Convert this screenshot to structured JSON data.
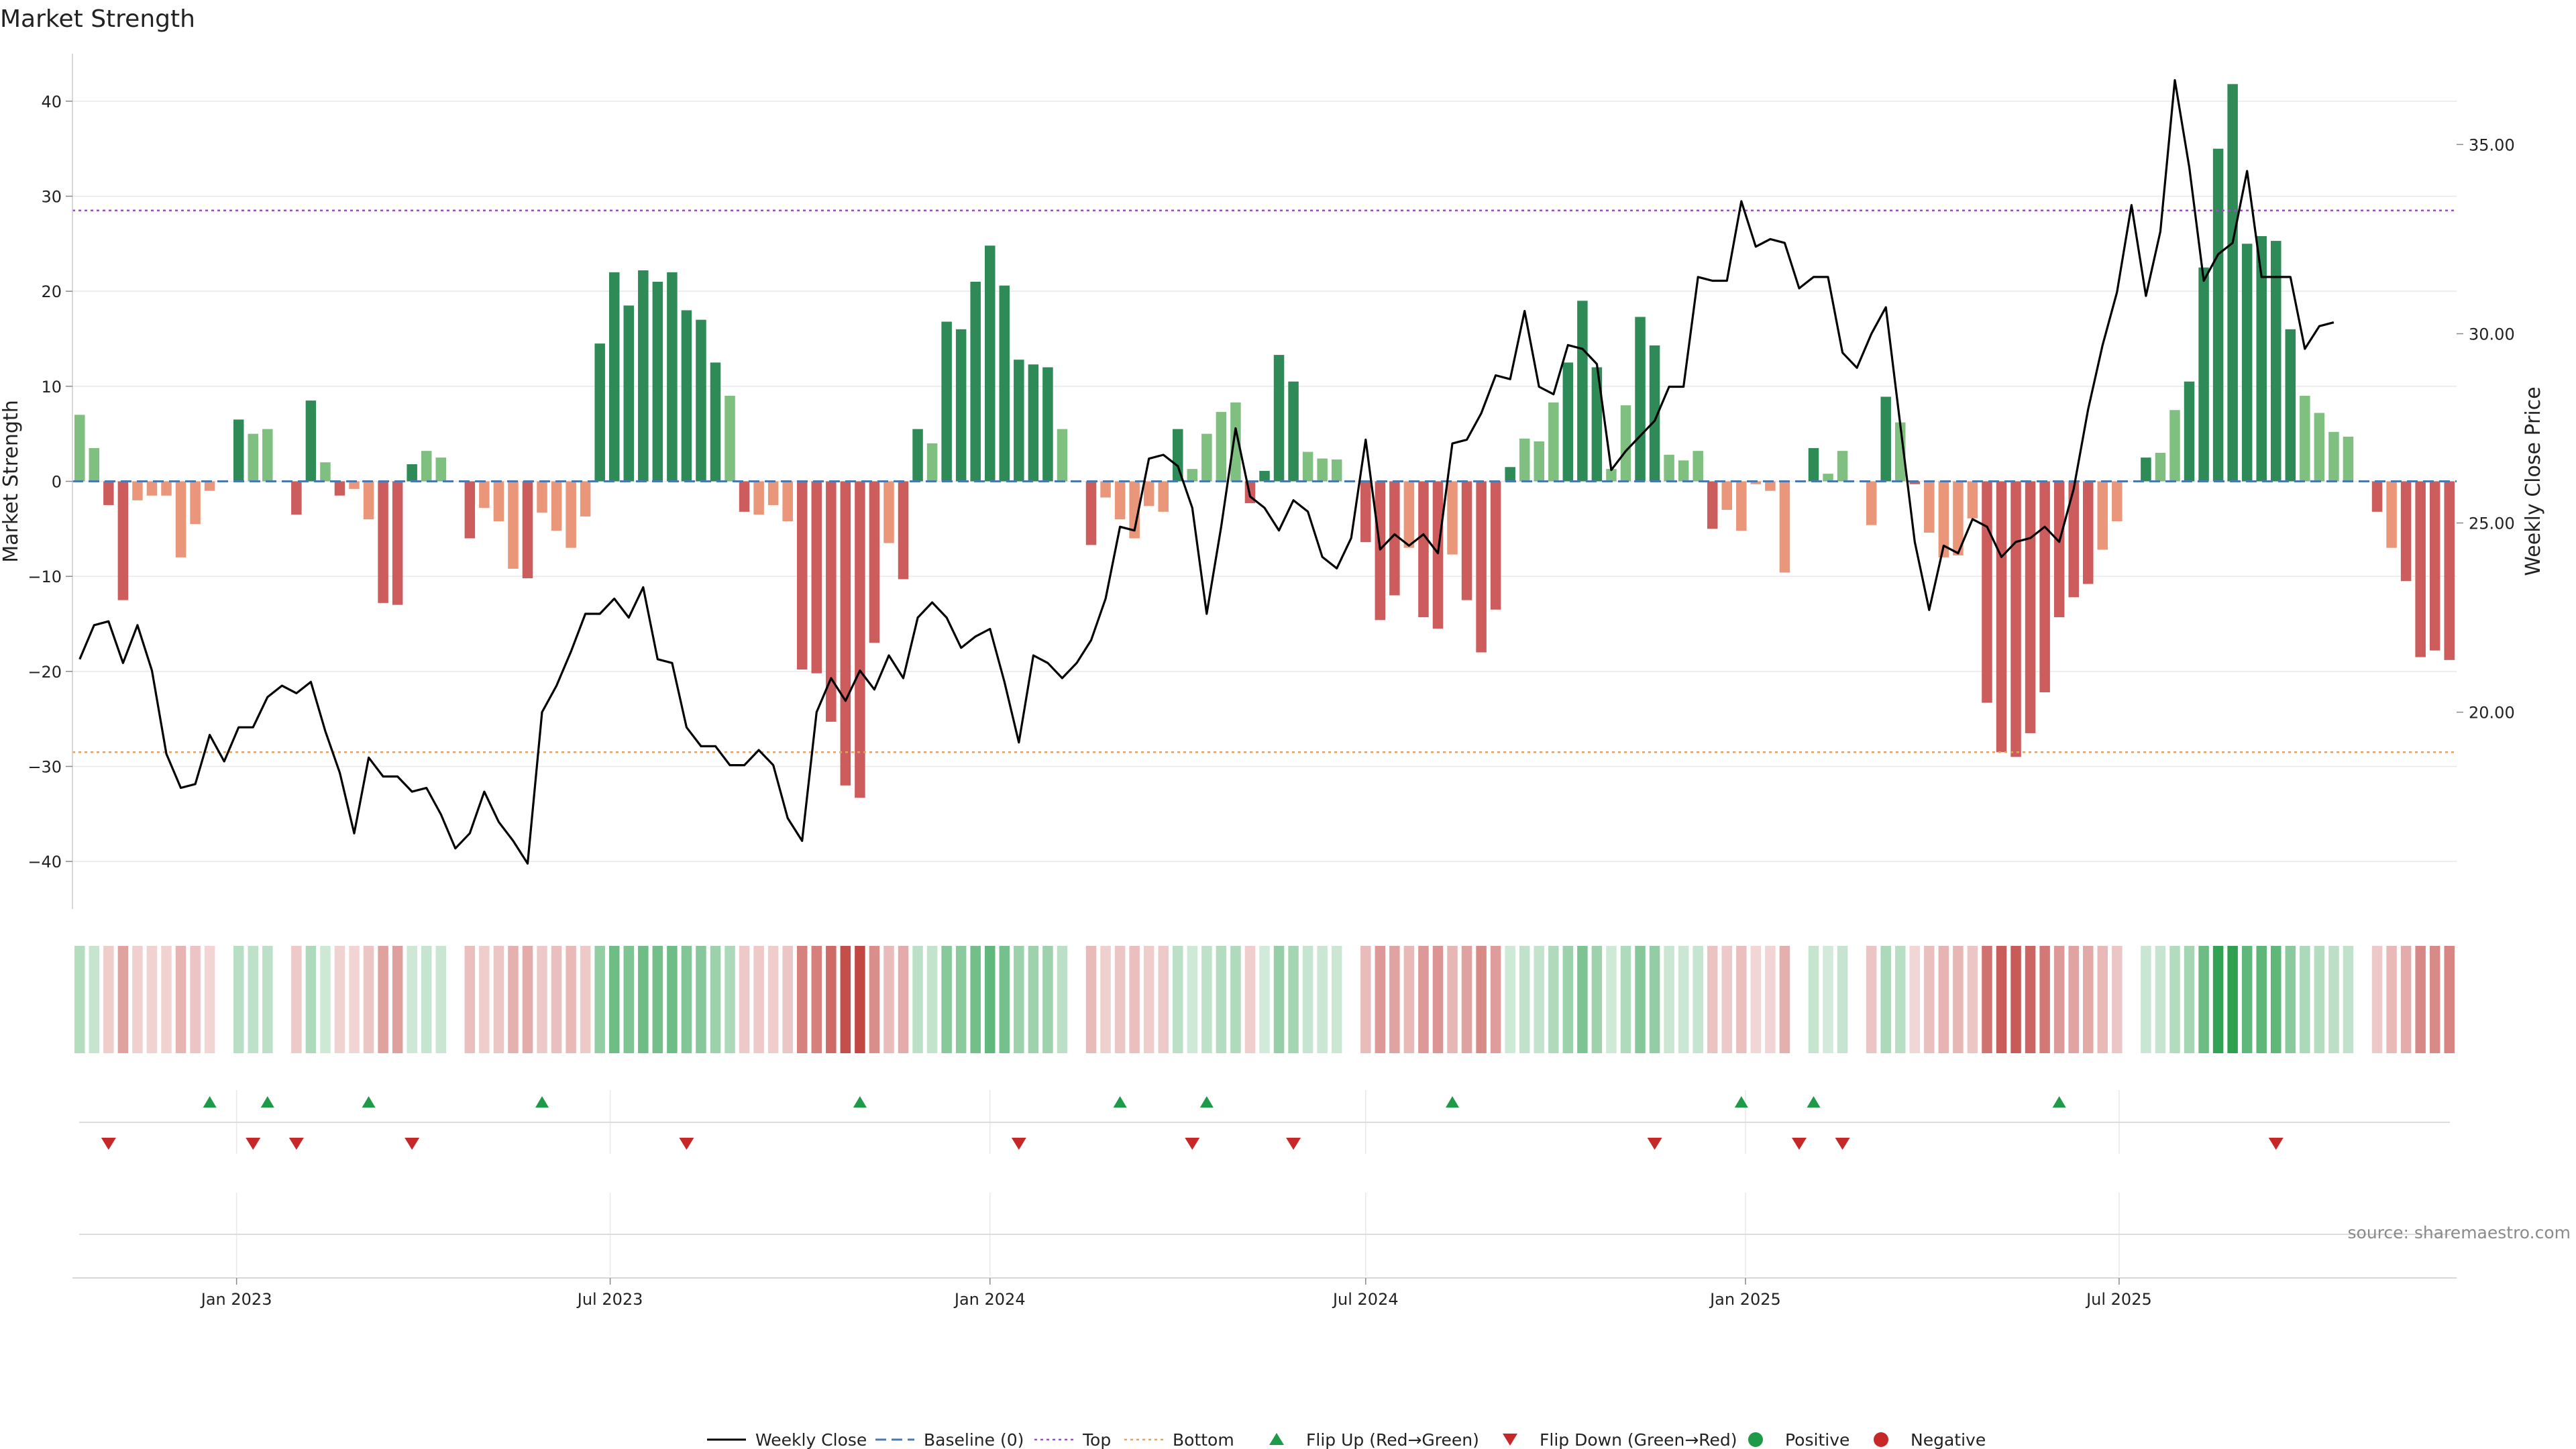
{
  "title": "Market Strength",
  "source": "source: sharemaestro.com",
  "colors": {
    "pos_strong": "#2e8b57",
    "pos_weak": "#7fc081",
    "neg_strong": "#cd5c5c",
    "neg_weak": "#e9967a",
    "price_line": "#000000",
    "baseline": "#4a78b0",
    "top_line": "#9a4fc7",
    "bottom_line": "#e4a262",
    "flip_up": "#1f9a48",
    "flip_down": "#c62828",
    "grid": "#e8e8e8"
  },
  "legend": [
    {
      "label": "Weekly Close",
      "icon": "solid-line"
    },
    {
      "label": "Baseline (0)",
      "icon": "dashed-line"
    },
    {
      "label": "Top",
      "icon": "dotted-line"
    },
    {
      "label": "Bottom",
      "icon": "dotted-line"
    },
    {
      "label": "Flip Up (Red→Green)",
      "icon": "triangle-up"
    },
    {
      "label": "Flip Down (Green→Red)",
      "icon": "triangle-down"
    },
    {
      "label": "Positive",
      "icon": "circle"
    },
    {
      "label": "Negative",
      "icon": "circle"
    }
  ],
  "chart_data": {
    "type": "bar",
    "start_date": "2022-10-17",
    "interval_days": 7,
    "x_ticks": [
      "Jan 2023",
      "Jul 2023",
      "Jan 2024",
      "Jul 2024",
      "Jan 2025",
      "Jul 2025"
    ],
    "x_tick_dates": [
      "2023-01-01",
      "2023-07-01",
      "2024-01-01",
      "2024-07-01",
      "2025-01-01",
      "2025-07-01"
    ],
    "y_left": {
      "label": "Market Strength",
      "ticks": [
        40,
        30,
        20,
        10,
        0,
        -10,
        -20,
        -30,
        -40
      ],
      "range": [
        -45,
        45
      ]
    },
    "y_right": {
      "label": "Weekly Close Price",
      "ticks": [
        "35.00",
        "30.00",
        "25.00",
        "20.00"
      ],
      "tick_values": [
        35,
        30,
        25,
        20
      ],
      "range": [
        14.8,
        37.4
      ]
    },
    "top_level": 28.5,
    "bottom_level": -28.5,
    "strength": [
      7,
      3.5,
      -2.5,
      -12.5,
      -2,
      -1.5,
      -1.5,
      -8,
      -4.5,
      -1,
      0,
      6.5,
      5,
      5.5,
      0,
      -3.5,
      8.5,
      2,
      -1.5,
      -0.8,
      -4,
      -12.8,
      -13,
      1.8,
      3.2,
      2.5,
      0,
      -6,
      -2.8,
      -4.2,
      -9.2,
      -10.2,
      -3.3,
      -5.2,
      -7,
      -3.7,
      14.5,
      22,
      18.5,
      22.2,
      21,
      22,
      18,
      17,
      12.5,
      9,
      -3.2,
      -3.5,
      -2.5,
      -4.2,
      -19.8,
      -20.2,
      -25.3,
      -32,
      -33.3,
      -17,
      -6.5,
      -10.3,
      5.5,
      4,
      16.8,
      16,
      21,
      24.8,
      20.6,
      12.8,
      12.3,
      12,
      5.5,
      0,
      -6.7,
      -1.7,
      -4,
      -6,
      -2.6,
      -3.2,
      5.5,
      1.3,
      5,
      7.3,
      8.3,
      -2.3,
      1.1,
      13.3,
      10.5,
      3.1,
      2.4,
      2.3,
      0,
      -6.4,
      -14.6,
      -12,
      -7,
      -14.3,
      -15.5,
      -7.7,
      -12.5,
      -18,
      -13.5,
      1.5,
      4.5,
      4.2,
      8.3,
      12.5,
      19,
      12,
      1.3,
      8,
      17.3,
      14.3,
      2.8,
      2.2,
      3.2,
      -5,
      -3,
      -5.2,
      -0.3,
      -1,
      -9.6,
      -0.2,
      3.5,
      0.8,
      3.2,
      -0.2,
      -4.6,
      8.9,
      6.2,
      -0.3,
      -5.4,
      -8,
      -7.8,
      -3.9,
      -23.3,
      -28.5,
      -29,
      -26.5,
      -22.2,
      -14.3,
      -12.2,
      -10.8,
      -7.2,
      -4.2,
      0,
      2.5,
      3,
      7.5,
      10.5,
      22.5,
      35,
      41.8,
      25,
      25.8,
      25.3,
      16,
      9,
      7.2,
      5.2,
      4.7,
      0,
      -3.2,
      -7,
      -10.5,
      -18.5,
      -17.8,
      -18.8
    ],
    "weekly_close": [
      21.4,
      22.3,
      22.4,
      21.3,
      22.3,
      21.1,
      18.9,
      18,
      18.1,
      19.4,
      18.7,
      19.6,
      19.6,
      20.4,
      20.7,
      20.5,
      20.8,
      19.5,
      18.4,
      16.8,
      18.8,
      18.3,
      18.3,
      17.9,
      18,
      17.3,
      16.4,
      16.8,
      17.9,
      17.1,
      16.6,
      16,
      20,
      20.7,
      21.6,
      22.6,
      22.6,
      23,
      22.5,
      23.3,
      21.4,
      21.3,
      19.6,
      19.1,
      19.1,
      18.6,
      18.6,
      19,
      18.6,
      17.2,
      16.6,
      20,
      20.9,
      20.3,
      21.1,
      20.6,
      21.5,
      20.9,
      22.5,
      22.9,
      22.5,
      21.7,
      22,
      22.2,
      20.8,
      19.2,
      21.5,
      21.3,
      20.9,
      21.3,
      21.9,
      23,
      24.9,
      24.8,
      26.7,
      26.8,
      26.5,
      25.4,
      22.6,
      24.9,
      27.5,
      25.7,
      25.4,
      24.8,
      25.6,
      25.3,
      24.1,
      23.8,
      24.6,
      27.2,
      24.3,
      24.7,
      24.4,
      24.7,
      24.2,
      27.1,
      27.2,
      27.9,
      28.9,
      28.8,
      30.6,
      28.6,
      28.4,
      29.7,
      29.6,
      29.2,
      26.4,
      26.9,
      27.3,
      27.7,
      28.6,
      28.6,
      31.5,
      31.4,
      31.4,
      33.5,
      32.3,
      32.5,
      32.4,
      31.2,
      31.5,
      31.5,
      29.5,
      29.1,
      30,
      30.7,
      27.6,
      24.5,
      22.7,
      24.4,
      24.2,
      25.1,
      24.9,
      24.1,
      24.5,
      24.6,
      24.9,
      24.5,
      25.9,
      28,
      29.7,
      31.1,
      33.4,
      31,
      32.7,
      36.7,
      34.4,
      31.4,
      32.1,
      32.4,
      34.3,
      31.5,
      31.5,
      31.5,
      29.6,
      30.2,
      30.3
    ],
    "flip_up_index": [
      9,
      13,
      20,
      32,
      54,
      72,
      78,
      95,
      115,
      120,
      137
    ],
    "flip_down_index": [
      2,
      12,
      15,
      23,
      42,
      65,
      77,
      84,
      109,
      119,
      122,
      152
    ]
  }
}
